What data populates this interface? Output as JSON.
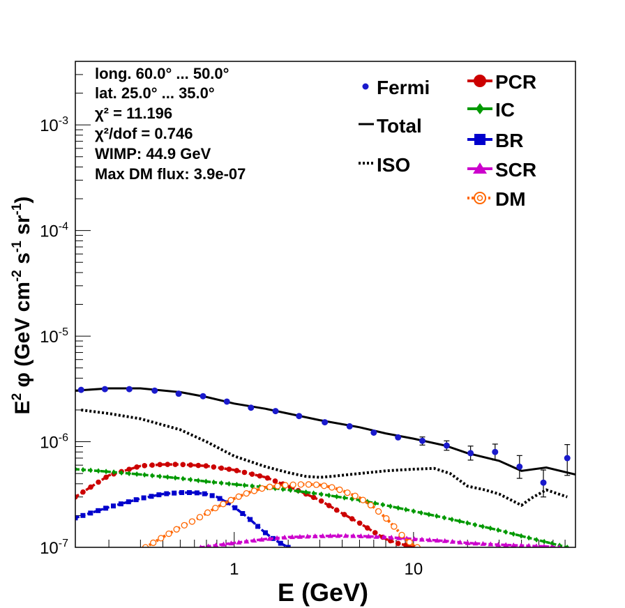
{
  "chart_data": {
    "type": "line",
    "x_scale": "log",
    "y_scale": "log",
    "xlim": [
      0.13,
      80
    ],
    "ylim": [
      1e-07,
      0.004
    ],
    "xlabel": "E (GeV)",
    "ylabel": "E^2 φ (GeV cm^-2 s^-1 sr^-1)",
    "x_ticks": [
      {
        "value": 1,
        "label": "1"
      },
      {
        "value": 10,
        "label": "10"
      }
    ],
    "y_ticks": [
      {
        "value": 1e-07,
        "base": "10",
        "exp": "-7"
      },
      {
        "value": 1e-06,
        "base": "10",
        "exp": "-6"
      },
      {
        "value": 1e-05,
        "base": "10",
        "exp": "-5"
      },
      {
        "value": 0.0001,
        "base": "10",
        "exp": "-4"
      },
      {
        "value": 0.001,
        "base": "10",
        "exp": "-3"
      }
    ],
    "info": {
      "line1": "long. 60.0° ... 50.0°",
      "line2": "lat. 25.0° ... 35.0°",
      "chi2": "χ² = 11.196",
      "chi2dof": "χ²/dof = 0.746",
      "wimp": "WIMP: 44.9 GeV",
      "maxdm": "Max DM flux: 3.9e-07"
    },
    "legend_placement": "top-right",
    "legend": [
      "Fermi",
      "Total",
      "ISO",
      "PCR",
      "IC",
      "BR",
      "SCR",
      "DM"
    ],
    "fermi": {
      "name": "Fermi",
      "color": "#1a1acc",
      "x": [
        0.14,
        0.19,
        0.26,
        0.36,
        0.49,
        0.67,
        0.91,
        1.24,
        1.7,
        2.3,
        3.2,
        4.4,
        6.0,
        8.2,
        11.2,
        15.3,
        20.8,
        28.5,
        39,
        53,
        72
      ],
      "y": [
        3.1e-06,
        3.15e-06,
        3.15e-06,
        3.05e-06,
        2.85e-06,
        2.7e-06,
        2.4e-06,
        2.1e-06,
        1.95e-06,
        1.75e-06,
        1.53e-06,
        1.4e-06,
        1.22e-06,
        1.1e-06,
        1.02e-06,
        9.2e-07,
        7.8e-07,
        8e-07,
        5.8e-07,
        4.1e-07,
        7e-07
      ],
      "err_lo": [
        0,
        0,
        0,
        0,
        0,
        0,
        0,
        0,
        0,
        0,
        0,
        0,
        0,
        0,
        9e-08,
        9e-08,
        1.1e-07,
        1.3e-07,
        1.3e-07,
        1.1e-07,
        2.2e-07
      ],
      "err_hi": [
        0,
        0,
        0,
        0,
        0,
        0,
        0,
        0,
        0,
        0,
        0,
        0,
        0,
        0,
        9e-08,
        1e-07,
        1.3e-07,
        1.5e-07,
        1.6e-07,
        1.3e-07,
        2.4e-07
      ]
    },
    "series": [
      {
        "name": "Total",
        "color": "#000000",
        "style": "solid",
        "marker": "none",
        "x": [
          0.13,
          0.2,
          0.3,
          0.5,
          0.7,
          1.0,
          1.5,
          2.0,
          3.0,
          5.0,
          7.0,
          10.0,
          15.0,
          20.0,
          30.0,
          40.0,
          55.0,
          80.0
        ],
        "y": [
          3.05e-06,
          3.2e-06,
          3.2e-06,
          2.95e-06,
          2.65e-06,
          2.3e-06,
          2.05e-06,
          1.85e-06,
          1.6e-06,
          1.37e-06,
          1.2e-06,
          1.07e-06,
          9.2e-07,
          7.8e-07,
          6.6e-07,
          5.3e-07,
          5.7e-07,
          4.9e-07
        ]
      },
      {
        "name": "ISO",
        "color": "#000000",
        "style": "dotted",
        "marker": "none",
        "x": [
          0.14,
          0.2,
          0.3,
          0.5,
          0.7,
          1.0,
          1.5,
          2.0,
          2.5,
          3.0,
          3.5,
          5.0,
          7.0,
          10.0,
          13.0,
          16.0,
          20.0,
          25.0,
          30.0,
          40.0,
          45.0,
          55.0,
          72.0
        ],
        "y": [
          2e-06,
          1.85e-06,
          1.65e-06,
          1.3e-06,
          1e-06,
          7.3e-07,
          5.8e-07,
          5.1e-07,
          4.7e-07,
          4.6e-07,
          4.7e-07,
          5e-07,
          5.3e-07,
          5.5e-07,
          5.6e-07,
          5e-07,
          3.8e-07,
          3.5e-07,
          3.2e-07,
          2.5e-07,
          2.9e-07,
          3.5e-07,
          3e-07
        ]
      },
      {
        "name": "PCR",
        "color": "#cc0000",
        "style": "dashed",
        "marker": "circle",
        "x": [
          0.13,
          0.2,
          0.3,
          0.4,
          0.5,
          0.7,
          1.0,
          1.5,
          2.0,
          3.0,
          4.0,
          5.0,
          6.0,
          7.0,
          8.0,
          9.0,
          10.0
        ],
        "y": [
          3e-07,
          4.8e-07,
          5.9e-07,
          6.1e-07,
          6.1e-07,
          5.9e-07,
          5.4e-07,
          4.6e-07,
          3.8e-07,
          2.8e-07,
          2.1e-07,
          1.7e-07,
          1.4e-07,
          1.2e-07,
          1.1e-07,
          1.05e-07,
          1e-07
        ]
      },
      {
        "name": "IC",
        "color": "#009900",
        "style": "dashed",
        "marker": "diamond",
        "x": [
          0.13,
          0.2,
          0.3,
          0.5,
          0.7,
          1.0,
          1.5,
          2.0,
          3.0,
          5.0,
          7.0,
          10.0,
          15.0,
          20.0,
          30.0,
          40.0,
          55.0,
          72.0
        ],
        "y": [
          5.5e-07,
          5.2e-07,
          4.9e-07,
          4.5e-07,
          4.2e-07,
          3.95e-07,
          3.7e-07,
          3.5e-07,
          3.2e-07,
          2.8e-07,
          2.5e-07,
          2.2e-07,
          1.9e-07,
          1.7e-07,
          1.45e-07,
          1.28e-07,
          1.12e-07,
          1e-07
        ]
      },
      {
        "name": "BR",
        "color": "#0000cc",
        "style": "dashed",
        "marker": "square",
        "x": [
          0.13,
          0.2,
          0.3,
          0.4,
          0.5,
          0.6,
          0.7,
          0.8,
          0.9,
          1.0,
          1.2,
          1.4,
          1.6,
          1.8,
          2.0
        ],
        "y": [
          1.9e-07,
          2.4e-07,
          2.9e-07,
          3.2e-07,
          3.3e-07,
          3.3e-07,
          3.2e-07,
          3e-07,
          2.7e-07,
          2.4e-07,
          1.9e-07,
          1.5e-07,
          1.25e-07,
          1.1e-07,
          1e-07
        ]
      },
      {
        "name": "SCR",
        "color": "#cc00cc",
        "style": "dashed",
        "marker": "triangle",
        "x": [
          0.65,
          0.8,
          1.0,
          1.5,
          2.0,
          3.0,
          4.0,
          5.0,
          7.0,
          10.0,
          15.0,
          20.0,
          30.0,
          40.0,
          55.0,
          65.0
        ],
        "y": [
          1e-07,
          1.05e-07,
          1.1e-07,
          1.2e-07,
          1.25e-07,
          1.28e-07,
          1.29e-07,
          1.28e-07,
          1.25e-07,
          1.2e-07,
          1.15e-07,
          1.1e-07,
          1.06e-07,
          1.04e-07,
          1.02e-07,
          1e-07
        ]
      },
      {
        "name": "DM",
        "color": "#ff6600",
        "style": "dotted",
        "marker": "open-circle",
        "x": [
          0.32,
          0.4,
          0.5,
          0.6,
          0.7,
          0.8,
          1.0,
          1.2,
          1.5,
          2.0,
          2.5,
          3.0,
          3.5,
          4.0,
          5.0,
          6.0,
          7.0,
          8.0,
          9.0,
          10.0,
          10.5
        ],
        "y": [
          1e-07,
          1.25e-07,
          1.55e-07,
          1.8e-07,
          2.1e-07,
          2.4e-07,
          2.9e-07,
          3.3e-07,
          3.7e-07,
          3.9e-07,
          3.95e-07,
          3.9e-07,
          3.7e-07,
          3.45e-07,
          2.95e-07,
          2.4e-07,
          1.9e-07,
          1.5e-07,
          1.2e-07,
          1.05e-07,
          1e-07
        ]
      }
    ]
  }
}
